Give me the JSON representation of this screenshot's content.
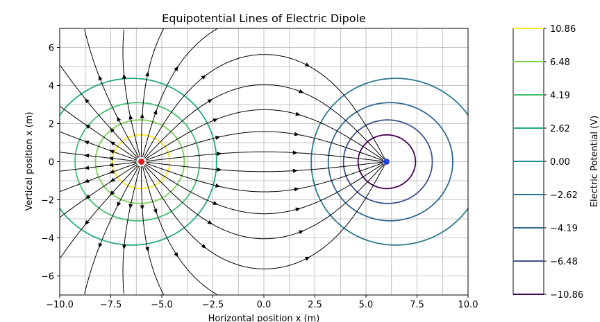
{
  "chart_data": {
    "type": "contour",
    "title": "Equipotential Lines of Electric Dipole",
    "xlabel": "Horizontal position x (m)",
    "ylabel": "Vertical position x (m)",
    "xlim": [
      -10,
      10
    ],
    "ylim": [
      -7,
      7
    ],
    "xticks": [
      -10,
      -7.5,
      -5,
      -2.5,
      0,
      2.5,
      5,
      7.5,
      10
    ],
    "xtick_labels": [
      "−10.0",
      "−7.5",
      "−5.0",
      "−2.5",
      "0.0",
      "2.5",
      "5.0",
      "7.5",
      "10.0"
    ],
    "yticks": [
      -6,
      -4,
      -2,
      0,
      2,
      4,
      6
    ],
    "ytick_labels": [
      "−6",
      "−4",
      "−2",
      "0",
      "2",
      "4",
      "6"
    ],
    "grid": true,
    "charges": [
      {
        "sign": "positive",
        "x": -6,
        "y": 0,
        "color": "#e41a1c"
      },
      {
        "sign": "negative",
        "x": 6,
        "y": 0,
        "color": "#1f3fdd"
      }
    ],
    "contour_levels": [
      -10.86,
      -6.48,
      -4.19,
      -2.62,
      0.0,
      2.62,
      4.19,
      6.48,
      10.86
    ],
    "contour_colors": [
      "#440154",
      "#3b528b",
      "#31688e",
      "#2a788e",
      "#21918c",
      "#22a884",
      "#44bf70",
      "#7ad151",
      "#fde725"
    ],
    "colorbar": {
      "label": "Electric Potential (V)",
      "tick_labels": [
        "10.86",
        "6.48",
        "4.19",
        "2.62",
        "0.00",
        "−2.62",
        "−4.19",
        "−6.48",
        "−10.86"
      ]
    },
    "streamlines": true
  }
}
